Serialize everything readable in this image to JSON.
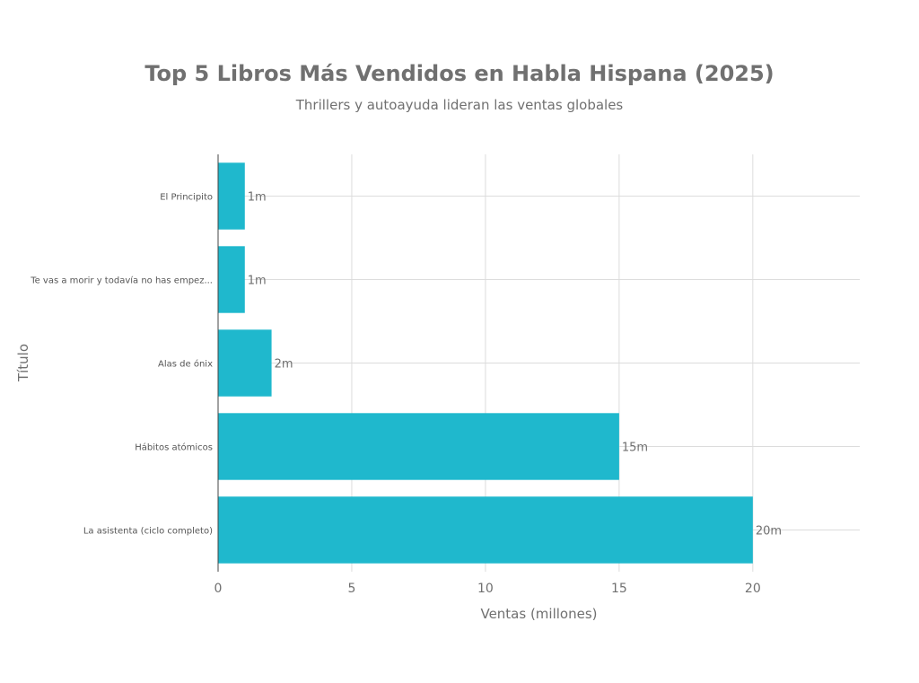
{
  "chart_data": {
    "type": "bar",
    "orientation": "horizontal",
    "title": "Top 5 Libros Más Vendidos en Habla Hispana (2025)",
    "subtitle": "Thrillers y autoayuda lideran las ventas globales",
    "xlabel": "Ventas (millones)",
    "ylabel": "Título",
    "categories": [
      "El Principito",
      "Te vas a morir y todavía no has empez...",
      "Alas de ónix",
      "Hábitos atómicos",
      "La asistenta (ciclo completo)"
    ],
    "values": [
      1,
      1,
      2,
      15,
      20
    ],
    "data_labels": [
      "1m",
      "1m",
      "2m",
      "15m",
      "20m"
    ],
    "xlim": [
      0,
      24
    ],
    "xticks": [
      0,
      5,
      10,
      15,
      20
    ],
    "grid": true,
    "bar_color": "#1FB8CD"
  }
}
